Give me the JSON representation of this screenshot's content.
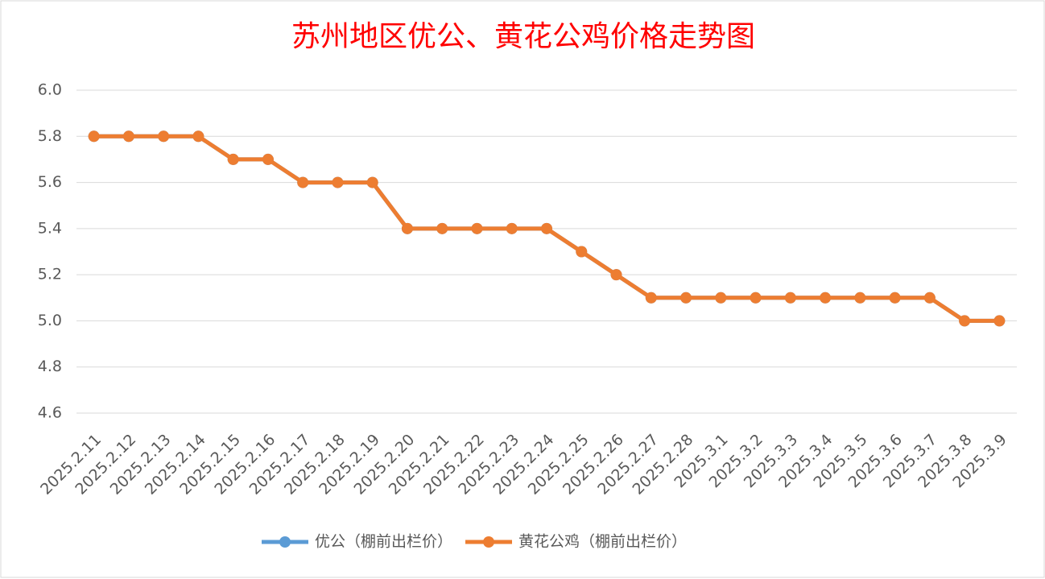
{
  "chart_data": {
    "type": "line",
    "title": "苏州地区优公、黄花公鸡价格走势图",
    "categories": [
      "2025.2.11",
      "2025.2.12",
      "2025.2.13",
      "2025.2.14",
      "2025.2.15",
      "2025.2.16",
      "2025.2.17",
      "2025.2.18",
      "2025.2.19",
      "2025.2.20",
      "2025.2.21",
      "2025.2.22",
      "2025.2.23",
      "2025.2.24",
      "2025.2.25",
      "2025.2.26",
      "2025.2.27",
      "2025.2.28",
      "2025.3.1",
      "2025.3.2",
      "2025.3.3",
      "2025.3.4",
      "2025.3.5",
      "2025.3.6",
      "2025.3.7",
      "2025.3.8",
      "2025.3.9"
    ],
    "series": [
      {
        "name": "优公（棚前出栏价）",
        "color": "#5b9bd5",
        "values": [
          5.8,
          5.8,
          5.8,
          5.8,
          5.7,
          5.7,
          5.6,
          5.6,
          5.6,
          5.4,
          5.4,
          5.4,
          5.4,
          5.4,
          5.3,
          5.2,
          5.1,
          5.1,
          5.1,
          5.1,
          5.1,
          5.1,
          5.1,
          5.1,
          5.1,
          5.0,
          5.0
        ]
      },
      {
        "name": "黄花公鸡（棚前出栏价）",
        "color": "#ed7d31",
        "values": [
          5.8,
          5.8,
          5.8,
          5.8,
          5.7,
          5.7,
          5.6,
          5.6,
          5.6,
          5.4,
          5.4,
          5.4,
          5.4,
          5.4,
          5.3,
          5.2,
          5.1,
          5.1,
          5.1,
          5.1,
          5.1,
          5.1,
          5.1,
          5.1,
          5.1,
          5.0,
          5.0
        ]
      }
    ],
    "ylim": [
      4.6,
      6.0
    ],
    "yticks": [
      4.6,
      4.8,
      {
        "value": 5.0,
        "label": "5.0"
      },
      5.2,
      5.4,
      5.6,
      5.8,
      {
        "value": 6.0,
        "label": "6.0"
      }
    ],
    "grid": true,
    "legend": "bottom"
  }
}
